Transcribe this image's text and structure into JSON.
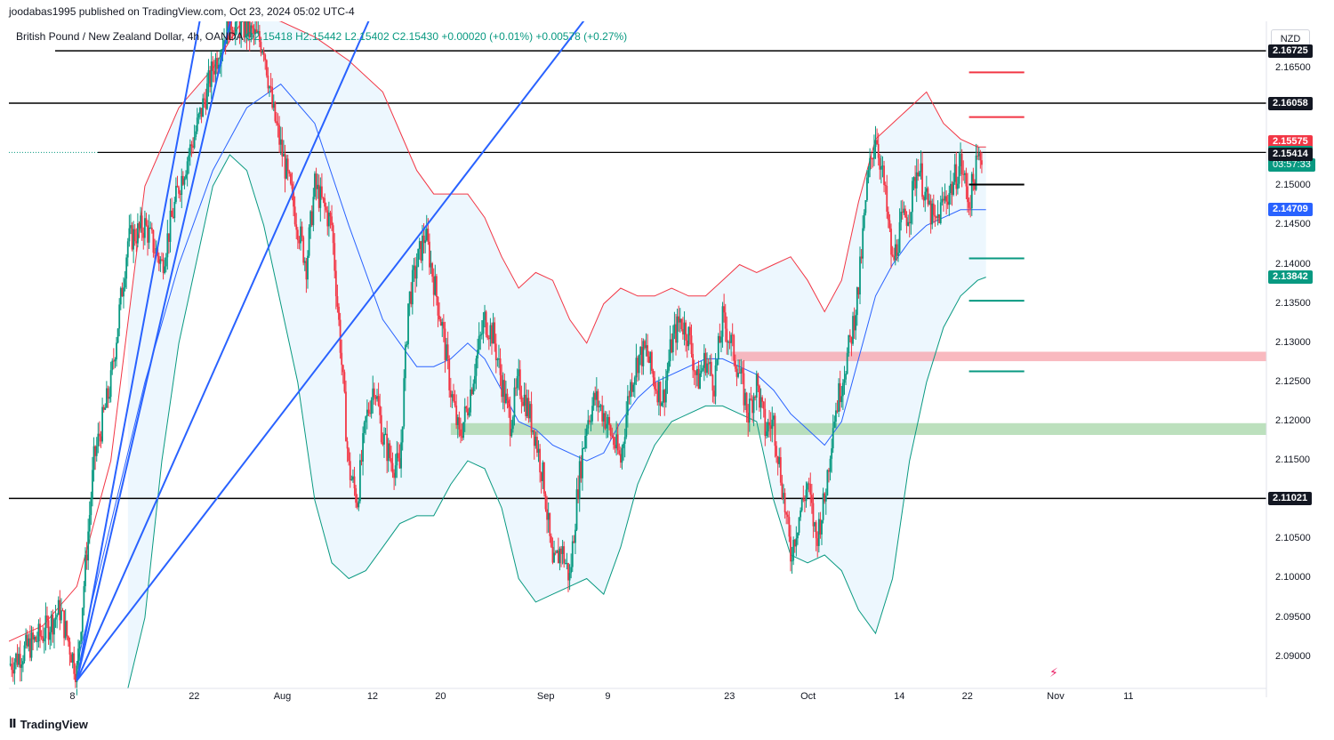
{
  "publisher_line": "joodabas1995 published on TradingView.com, Oct 23, 2024 05:02 UTC-4",
  "legend": {
    "symbol": "British Pound / New Zealand Dollar, 4h, OANDA",
    "ohlc": "O2.15418 H2.15442 L2.15402 C2.15430",
    "change": "+0.00020 (+0.01%) +0.00578 (+0.27%)"
  },
  "currency_button": "NZD",
  "brand": "TradingView",
  "colors": {
    "up": "#089981",
    "down": "#f23645",
    "upper_band": "#f23645",
    "lower_band": "#089981",
    "middle_band": "#2962ff",
    "band_fill": "#e3f2fd",
    "fan": "#2962ff",
    "black_levels": "#000000"
  },
  "chart_data": {
    "type": "candlestick",
    "ylim": [
      2.086,
      2.171
    ],
    "x_axis_labels": [
      "8",
      "22",
      "Aug",
      "12",
      "20",
      "Sep",
      "9",
      "23",
      "Oct",
      "14",
      "22",
      "Nov",
      "11"
    ],
    "x_axis_positions_days": [
      8,
      22,
      32,
      43,
      51,
      63,
      71,
      85,
      94,
      105,
      113,
      123,
      132
    ],
    "price_ticks": [
      "2.16500",
      "2.16000",
      "2.15500",
      "2.15000",
      "2.14500",
      "2.14000",
      "2.13500",
      "2.13000",
      "2.12500",
      "2.12000",
      "2.11500",
      "2.11000",
      "2.10500",
      "2.10000",
      "2.09500",
      "2.09000"
    ],
    "price_tick_values": [
      2.165,
      2.16,
      2.155,
      2.15,
      2.145,
      2.14,
      2.135,
      2.13,
      2.125,
      2.12,
      2.115,
      2.11,
      2.105,
      2.1,
      2.095,
      2.09
    ],
    "horizontal_levels": [
      {
        "price": 2.16725,
        "label": "2.16725"
      },
      {
        "price": 2.16058,
        "label": "2.16058"
      },
      {
        "price": 2.1543,
        "label": "2.15430"
      },
      {
        "price": 2.11021,
        "label": "2.11021"
      }
    ],
    "price_labels": [
      {
        "price": 2.16725,
        "text": "2.16725",
        "color": "#131722"
      },
      {
        "price": 2.16058,
        "text": "2.16058",
        "color": "#131722"
      },
      {
        "price": 2.15575,
        "text": "2.15575",
        "color": "#f23645"
      },
      {
        "price": 2.1543,
        "text": "2.15430",
        "sub": "03:57:33",
        "color": "#089981"
      },
      {
        "price": 2.15414,
        "text": "2.15414",
        "color": "#131722"
      },
      {
        "price": 2.14709,
        "text": "2.14709",
        "color": "#2962ff"
      },
      {
        "price": 2.13842,
        "text": "2.13842",
        "color": "#089981"
      },
      {
        "price": 2.11021,
        "text": "2.11021",
        "color": "#131722"
      }
    ],
    "zones": [
      {
        "type": "resistance",
        "from": 2.1277,
        "to": 2.1289,
        "start_day": 85
      },
      {
        "type": "support",
        "from": 2.1183,
        "to": 2.1198,
        "start_day": 52
      }
    ],
    "targets": [
      {
        "price": 2.1645,
        "color": "red"
      },
      {
        "price": 2.1588,
        "color": "red"
      },
      {
        "price": 2.1502,
        "color": "black"
      },
      {
        "price": 2.1408,
        "color": "green"
      },
      {
        "price": 2.1354,
        "color": "green"
      },
      {
        "price": 2.1264,
        "color": "green"
      }
    ],
    "series": [
      {
        "name": "Close",
        "path": [
          [
            0,
            2.089
          ],
          [
            2,
            2.091
          ],
          [
            4,
            2.093
          ],
          [
            6,
            2.096
          ],
          [
            8,
            2.088
          ],
          [
            10,
            2.115
          ],
          [
            12,
            2.125
          ],
          [
            14,
            2.143
          ],
          [
            16,
            2.145
          ],
          [
            18,
            2.14
          ],
          [
            20,
            2.15
          ],
          [
            22,
            2.157
          ],
          [
            24,
            2.165
          ],
          [
            26,
            2.171
          ],
          [
            28,
            2.17
          ],
          [
            30,
            2.168
          ],
          [
            31,
            2.16
          ],
          [
            32,
            2.155
          ],
          [
            34,
            2.145
          ],
          [
            35,
            2.14
          ],
          [
            36,
            2.15
          ],
          [
            38,
            2.145
          ],
          [
            39,
            2.13
          ],
          [
            40,
            2.114
          ],
          [
            41,
            2.11
          ],
          [
            42,
            2.12
          ],
          [
            43,
            2.125
          ],
          [
            44,
            2.118
          ],
          [
            45,
            2.115
          ],
          [
            46,
            2.114
          ],
          [
            47,
            2.135
          ],
          [
            48,
            2.14
          ],
          [
            49,
            2.144
          ],
          [
            50,
            2.138
          ],
          [
            51,
            2.132
          ],
          [
            52,
            2.124
          ],
          [
            53,
            2.118
          ],
          [
            54,
            2.122
          ],
          [
            55,
            2.128
          ],
          [
            56,
            2.133
          ],
          [
            57,
            2.131
          ],
          [
            58,
            2.125
          ],
          [
            59,
            2.12
          ],
          [
            60,
            2.125
          ],
          [
            61,
            2.122
          ],
          [
            62,
            2.118
          ],
          [
            63,
            2.112
          ],
          [
            64,
            2.101
          ],
          [
            65,
            2.104
          ],
          [
            66,
            2.1
          ],
          [
            67,
            2.112
          ],
          [
            68,
            2.12
          ],
          [
            69,
            2.123
          ],
          [
            70,
            2.121
          ],
          [
            71,
            2.118
          ],
          [
            72,
            2.115
          ],
          [
            73,
            2.124
          ],
          [
            74,
            2.128
          ],
          [
            75,
            2.129
          ],
          [
            76,
            2.125
          ],
          [
            77,
            2.123
          ],
          [
            78,
            2.13
          ],
          [
            79,
            2.133
          ],
          [
            80,
            2.131
          ],
          [
            81,
            2.125
          ],
          [
            82,
            2.128
          ],
          [
            83,
            2.125
          ],
          [
            84,
            2.133
          ],
          [
            85,
            2.13
          ],
          [
            86,
            2.126
          ],
          [
            87,
            2.121
          ],
          [
            88,
            2.125
          ],
          [
            89,
            2.119
          ],
          [
            90,
            2.12
          ],
          [
            91,
            2.112
          ],
          [
            92,
            2.103
          ],
          [
            93,
            2.108
          ],
          [
            94,
            2.112
          ],
          [
            95,
            2.105
          ],
          [
            96,
            2.11
          ],
          [
            97,
            2.12
          ],
          [
            98,
            2.125
          ],
          [
            99,
            2.13
          ],
          [
            100,
            2.137
          ],
          [
            101,
            2.15
          ],
          [
            102,
            2.157
          ],
          [
            103,
            2.15
          ],
          [
            104,
            2.14
          ],
          [
            105,
            2.145
          ],
          [
            106,
            2.147
          ],
          [
            107,
            2.153
          ],
          [
            108,
            2.148
          ],
          [
            109,
            2.145
          ],
          [
            110,
            2.148
          ],
          [
            111,
            2.15
          ],
          [
            112,
            2.153
          ],
          [
            113,
            2.148
          ],
          [
            114,
            2.153
          ],
          [
            114.6,
            2.1543
          ]
        ]
      },
      {
        "name": "Upper band",
        "path": [
          [
            0,
            2.092
          ],
          [
            4,
            2.094
          ],
          [
            8,
            2.099
          ],
          [
            12,
            2.115
          ],
          [
            16,
            2.15
          ],
          [
            20,
            2.16
          ],
          [
            24,
            2.165
          ],
          [
            28,
            2.172
          ],
          [
            32,
            2.171
          ],
          [
            36,
            2.169
          ],
          [
            40,
            2.166
          ],
          [
            44,
            2.162
          ],
          [
            46,
            2.157
          ],
          [
            48,
            2.152
          ],
          [
            50,
            2.149
          ],
          [
            52,
            2.149
          ],
          [
            54,
            2.149
          ],
          [
            56,
            2.146
          ],
          [
            58,
            2.141
          ],
          [
            60,
            2.137
          ],
          [
            62,
            2.139
          ],
          [
            64,
            2.138
          ],
          [
            66,
            2.133
          ],
          [
            68,
            2.13
          ],
          [
            70,
            2.135
          ],
          [
            72,
            2.137
          ],
          [
            74,
            2.136
          ],
          [
            76,
            2.136
          ],
          [
            78,
            2.137
          ],
          [
            80,
            2.136
          ],
          [
            82,
            2.136
          ],
          [
            84,
            2.138
          ],
          [
            86,
            2.14
          ],
          [
            88,
            2.139
          ],
          [
            90,
            2.14
          ],
          [
            92,
            2.141
          ],
          [
            94,
            2.138
          ],
          [
            96,
            2.134
          ],
          [
            98,
            2.138
          ],
          [
            100,
            2.148
          ],
          [
            102,
            2.156
          ],
          [
            104,
            2.158
          ],
          [
            106,
            2.16
          ],
          [
            108,
            2.162
          ],
          [
            110,
            2.158
          ],
          [
            112,
            2.156
          ],
          [
            114,
            2.155
          ],
          [
            115,
            2.155
          ]
        ]
      },
      {
        "name": "Middle band",
        "path": [
          [
            8,
            2.089
          ],
          [
            12,
            2.107
          ],
          [
            16,
            2.125
          ],
          [
            20,
            2.14
          ],
          [
            24,
            2.152
          ],
          [
            28,
            2.16
          ],
          [
            32,
            2.163
          ],
          [
            36,
            2.158
          ],
          [
            40,
            2.145
          ],
          [
            44,
            2.133
          ],
          [
            46,
            2.13
          ],
          [
            48,
            2.127
          ],
          [
            50,
            2.127
          ],
          [
            52,
            2.128
          ],
          [
            54,
            2.13
          ],
          [
            56,
            2.128
          ],
          [
            58,
            2.124
          ],
          [
            60,
            2.12
          ],
          [
            62,
            2.119
          ],
          [
            64,
            2.117
          ],
          [
            66,
            2.116
          ],
          [
            68,
            2.115
          ],
          [
            70,
            2.116
          ],
          [
            72,
            2.12
          ],
          [
            74,
            2.123
          ],
          [
            76,
            2.125
          ],
          [
            78,
            2.126
          ],
          [
            80,
            2.127
          ],
          [
            82,
            2.128
          ],
          [
            84,
            2.128
          ],
          [
            86,
            2.127
          ],
          [
            88,
            2.126
          ],
          [
            90,
            2.124
          ],
          [
            92,
            2.121
          ],
          [
            94,
            2.119
          ],
          [
            96,
            2.117
          ],
          [
            98,
            2.12
          ],
          [
            100,
            2.128
          ],
          [
            102,
            2.136
          ],
          [
            104,
            2.14
          ],
          [
            106,
            2.143
          ],
          [
            108,
            2.145
          ],
          [
            110,
            2.146
          ],
          [
            112,
            2.147
          ],
          [
            114,
            2.147
          ],
          [
            115,
            2.147
          ]
        ]
      },
      {
        "name": "Lower band",
        "path": [
          [
            14,
            2.086
          ],
          [
            16,
            2.095
          ],
          [
            18,
            2.115
          ],
          [
            20,
            2.13
          ],
          [
            22,
            2.14
          ],
          [
            24,
            2.15
          ],
          [
            26,
            2.154
          ],
          [
            28,
            2.152
          ],
          [
            30,
            2.145
          ],
          [
            32,
            2.135
          ],
          [
            34,
            2.125
          ],
          [
            36,
            2.11
          ],
          [
            38,
            2.102
          ],
          [
            40,
            2.1
          ],
          [
            42,
            2.101
          ],
          [
            44,
            2.104
          ],
          [
            46,
            2.107
          ],
          [
            48,
            2.108
          ],
          [
            50,
            2.108
          ],
          [
            52,
            2.112
          ],
          [
            54,
            2.115
          ],
          [
            56,
            2.114
          ],
          [
            58,
            2.109
          ],
          [
            60,
            2.1
          ],
          [
            62,
            2.097
          ],
          [
            64,
            2.098
          ],
          [
            66,
            2.099
          ],
          [
            68,
            2.1
          ],
          [
            70,
            2.098
          ],
          [
            72,
            2.104
          ],
          [
            74,
            2.112
          ],
          [
            76,
            2.117
          ],
          [
            78,
            2.12
          ],
          [
            80,
            2.121
          ],
          [
            82,
            2.122
          ],
          [
            84,
            2.122
          ],
          [
            86,
            2.121
          ],
          [
            88,
            2.12
          ],
          [
            90,
            2.11
          ],
          [
            92,
            2.103
          ],
          [
            94,
            2.102
          ],
          [
            96,
            2.103
          ],
          [
            98,
            2.101
          ],
          [
            100,
            2.096
          ],
          [
            102,
            2.093
          ],
          [
            104,
            2.1
          ],
          [
            106,
            2.115
          ],
          [
            108,
            2.125
          ],
          [
            110,
            2.132
          ],
          [
            112,
            2.136
          ],
          [
            114,
            2.138
          ],
          [
            115,
            2.1384
          ]
        ]
      }
    ],
    "fan_lines": [
      {
        "from": [
          8,
          2.087
        ],
        "to": [
          24,
          2.18
        ]
      },
      {
        "from": [
          8,
          2.087
        ],
        "to": [
          28,
          2.18
        ]
      },
      {
        "from": [
          8,
          2.087
        ],
        "to": [
          46,
          2.18
        ]
      },
      {
        "from": [
          8,
          2.087
        ],
        "to": [
          74,
          2.18
        ]
      }
    ],
    "xlim": [
      0,
      148
    ]
  }
}
